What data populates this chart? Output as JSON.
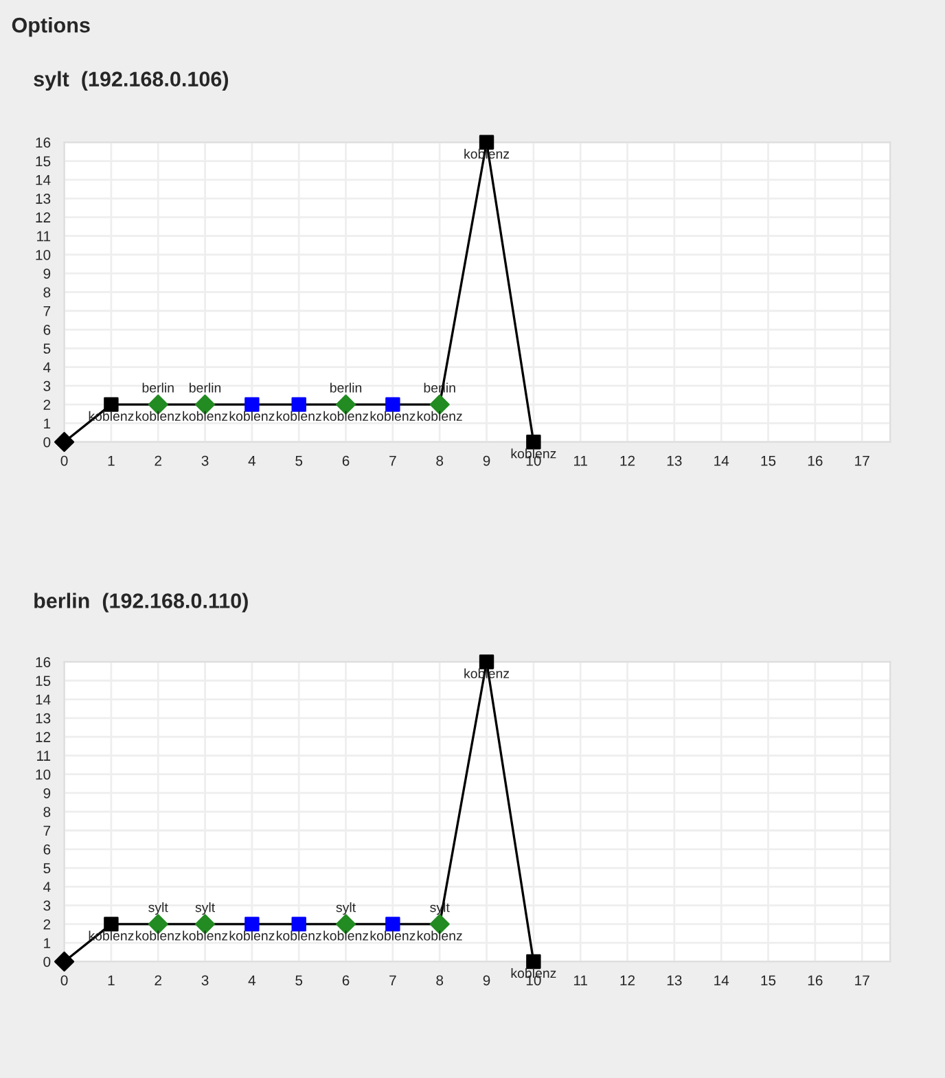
{
  "chart_data": [
    {
      "type": "line",
      "title": "sylt  (192.168.0.106)",
      "annotations": [
        "Options"
      ],
      "xlim": [
        0,
        17.6
      ],
      "ylim": [
        0,
        16
      ],
      "xticks": [
        0,
        1,
        2,
        3,
        4,
        5,
        6,
        7,
        8,
        9,
        10,
        11,
        12,
        13,
        14,
        15,
        16,
        17
      ],
      "yticks": [
        0,
        1,
        2,
        3,
        4,
        5,
        6,
        7,
        8,
        9,
        10,
        11,
        12,
        13,
        14,
        15,
        16
      ],
      "grid": true,
      "series": [
        {
          "type": "line",
          "color": "#000000",
          "marker": "none",
          "x": [
            0,
            1,
            2,
            3,
            4,
            5,
            6,
            7,
            8,
            9,
            10
          ],
          "values": [
            0,
            2,
            2,
            2,
            2,
            2,
            2,
            2,
            2,
            16,
            0
          ],
          "value_labels": [
            null,
            "koblenz",
            "koblenz",
            "koblenz",
            "koblenz",
            "koblenz",
            "koblenz",
            "koblenz",
            "koblenz",
            "koblenz",
            "koblenz"
          ]
        },
        {
          "type": "scatter",
          "color": "#000000",
          "marker": "diamond",
          "x": [
            0
          ],
          "values": [
            0
          ]
        },
        {
          "type": "scatter",
          "color": "#000000",
          "marker": "square",
          "x": [
            1,
            9,
            10
          ],
          "values": [
            2,
            16,
            0
          ]
        },
        {
          "type": "scatter",
          "color": "#228b22",
          "marker": "diamond",
          "x": [
            2,
            3,
            6,
            8
          ],
          "values": [
            2,
            2,
            2,
            2
          ],
          "value_labels": [
            "berlin",
            "berlin",
            "berlin",
            "berlin"
          ]
        },
        {
          "type": "scatter",
          "color": "#0000ff",
          "marker": "square",
          "x": [
            4,
            5,
            7
          ],
          "values": [
            2,
            2,
            2
          ]
        }
      ]
    },
    {
      "type": "line",
      "title": "berlin  (192.168.0.110)",
      "xlim": [
        0,
        17.6
      ],
      "ylim": [
        0,
        16
      ],
      "xticks": [
        0,
        1,
        2,
        3,
        4,
        5,
        6,
        7,
        8,
        9,
        10,
        11,
        12,
        13,
        14,
        15,
        16,
        17
      ],
      "yticks": [
        0,
        1,
        2,
        3,
        4,
        5,
        6,
        7,
        8,
        9,
        10,
        11,
        12,
        13,
        14,
        15,
        16
      ],
      "grid": true,
      "series": [
        {
          "type": "line",
          "color": "#000000",
          "marker": "none",
          "x": [
            0,
            1,
            2,
            3,
            4,
            5,
            6,
            7,
            8,
            9,
            10
          ],
          "values": [
            0,
            2,
            2,
            2,
            2,
            2,
            2,
            2,
            2,
            16,
            0
          ],
          "value_labels": [
            null,
            "koblenz",
            "koblenz",
            "koblenz",
            "koblenz",
            "koblenz",
            "koblenz",
            "koblenz",
            "koblenz",
            "koblenz",
            "koblenz"
          ]
        },
        {
          "type": "scatter",
          "color": "#000000",
          "marker": "diamond",
          "x": [
            0
          ],
          "values": [
            0
          ]
        },
        {
          "type": "scatter",
          "color": "#000000",
          "marker": "square",
          "x": [
            1,
            9,
            10
          ],
          "values": [
            2,
            16,
            0
          ]
        },
        {
          "type": "scatter",
          "color": "#228b22",
          "marker": "diamond",
          "x": [
            2,
            3,
            6,
            8
          ],
          "values": [
            2,
            2,
            2,
            2
          ],
          "value_labels": [
            "sylt",
            "sylt",
            "sylt",
            "sylt"
          ]
        },
        {
          "type": "scatter",
          "color": "#0000ff",
          "marker": "square",
          "x": [
            4,
            5,
            7
          ],
          "values": [
            2,
            2,
            2
          ]
        }
      ]
    }
  ]
}
